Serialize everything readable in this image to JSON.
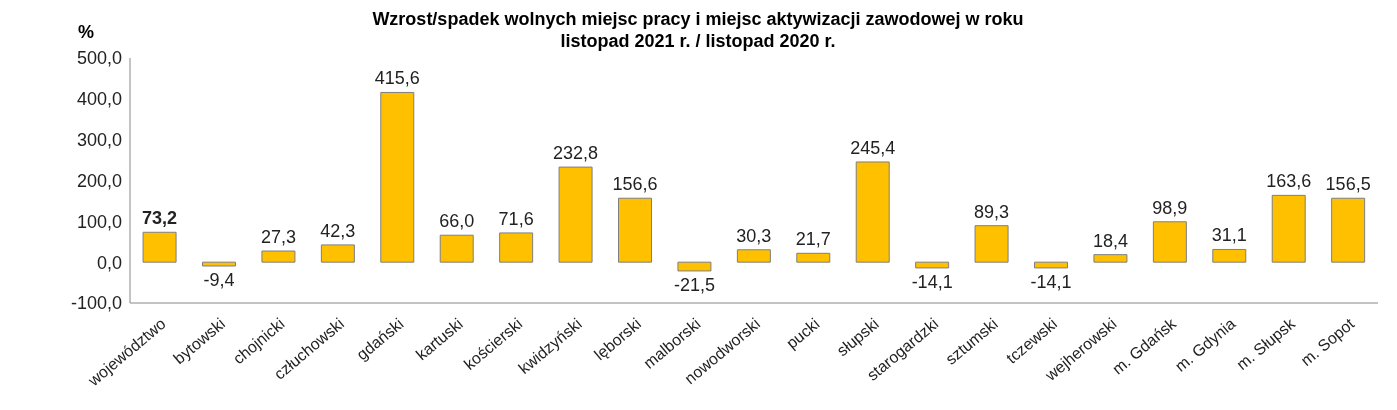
{
  "chart_data": {
    "type": "bar",
    "title": "Wzrost/spadek wolnych miejsc pracy i miejsc aktywizacji zawodowej w roku\nlistopad 2021 r. / listopad 2020 r.",
    "ylabel": "%",
    "categories": [
      "województwo",
      "bytowski",
      "chojnicki",
      "człuchowski",
      "gdański",
      "kartuski",
      "kościerski",
      "kwidzyński",
      "lęborski",
      "malborski",
      "nowodworski",
      "pucki",
      "słupski",
      "starogardzki",
      "sztumski",
      "tczewski",
      "wejherowski",
      "m. Gdańsk",
      "m. Gdynia",
      "m. Słupsk",
      "m. Sopot"
    ],
    "values": [
      73.2,
      -9.4,
      27.3,
      42.3,
      415.6,
      66.0,
      71.6,
      232.8,
      156.6,
      -21.5,
      30.3,
      21.7,
      245.4,
      -14.1,
      89.3,
      -14.1,
      18.4,
      98.9,
      31.1,
      163.6,
      156.5
    ],
    "value_labels": [
      "73,2",
      "-9,4",
      "27,3",
      "42,3",
      "415,6",
      "66,0",
      "71,6",
      "232,8",
      "156,6",
      "-21,5",
      "30,3",
      "21,7",
      "245,4",
      "-14,1",
      "89,3",
      "-14,1",
      "18,4",
      "98,9",
      "31,1",
      "163,6",
      "156,5"
    ],
    "color": "#ffc000",
    "ylim": [
      -100,
      500
    ],
    "yticks": [
      {
        "value": -100,
        "label": "-100,0"
      },
      {
        "value": 0,
        "label": "0,0"
      },
      {
        "value": 100,
        "label": "100,0"
      },
      {
        "value": 200,
        "label": "200,0"
      },
      {
        "value": 300,
        "label": "300,0"
      },
      {
        "value": 400,
        "label": "400,0"
      },
      {
        "value": 500,
        "label": "500,0"
      }
    ],
    "grid": false,
    "legend": false
  }
}
